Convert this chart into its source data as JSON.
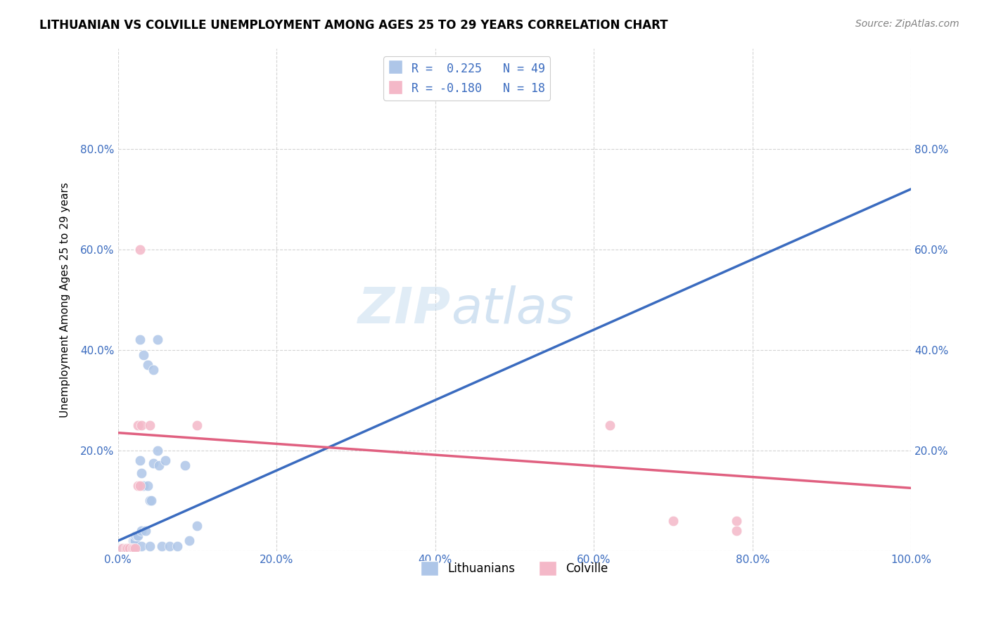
{
  "title": "LITHUANIAN VS COLVILLE UNEMPLOYMENT AMONG AGES 25 TO 29 YEARS CORRELATION CHART",
  "source": "Source: ZipAtlas.com",
  "ylabel": "Unemployment Among Ages 25 to 29 years",
  "xlim": [
    0,
    1.0
  ],
  "ylim": [
    0,
    1.0
  ],
  "xticks": [
    0.0,
    0.2,
    0.4,
    0.6,
    0.8,
    1.0
  ],
  "yticks": [
    0.0,
    0.2,
    0.4,
    0.6,
    0.8
  ],
  "xticklabels": [
    "0.0%",
    "20.0%",
    "40.0%",
    "60.0%",
    "80.0%",
    "100.0%"
  ],
  "yticklabels": [
    "",
    "20.0%",
    "40.0%",
    "60.0%",
    "80.0%"
  ],
  "blue_color": "#aec6e8",
  "pink_color": "#f4b8c8",
  "blue_line_color": "#3a6bbf",
  "pink_line_color": "#e06080",
  "blue_dash_color": "#c0d4ee",
  "watermark_zip": "ZIP",
  "watermark_atlas": "atlas",
  "blue_points": [
    [
      0.002,
      0.005
    ],
    [
      0.003,
      0.005
    ],
    [
      0.004,
      0.005
    ],
    [
      0.005,
      0.005
    ],
    [
      0.006,
      0.005
    ],
    [
      0.007,
      0.005
    ],
    [
      0.008,
      0.005
    ],
    [
      0.009,
      0.005
    ],
    [
      0.01,
      0.005
    ],
    [
      0.011,
      0.005
    ],
    [
      0.012,
      0.005
    ],
    [
      0.013,
      0.005
    ],
    [
      0.014,
      0.005
    ],
    [
      0.015,
      0.005
    ],
    [
      0.016,
      0.005
    ],
    [
      0.017,
      0.005
    ],
    [
      0.018,
      0.005
    ],
    [
      0.019,
      0.02
    ],
    [
      0.02,
      0.02
    ],
    [
      0.021,
      0.02
    ],
    [
      0.022,
      0.02
    ],
    [
      0.023,
      0.03
    ],
    [
      0.024,
      0.03
    ],
    [
      0.025,
      0.03
    ],
    [
      0.03,
      0.04
    ],
    [
      0.035,
      0.04
    ],
    [
      0.028,
      0.18
    ],
    [
      0.03,
      0.155
    ],
    [
      0.032,
      0.13
    ],
    [
      0.038,
      0.13
    ],
    [
      0.04,
      0.1
    ],
    [
      0.042,
      0.1
    ],
    [
      0.045,
      0.175
    ],
    [
      0.05,
      0.2
    ],
    [
      0.052,
      0.17
    ],
    [
      0.06,
      0.18
    ],
    [
      0.028,
      0.42
    ],
    [
      0.032,
      0.39
    ],
    [
      0.038,
      0.37
    ],
    [
      0.045,
      0.36
    ],
    [
      0.05,
      0.42
    ],
    [
      0.03,
      0.01
    ],
    [
      0.04,
      0.01
    ],
    [
      0.055,
      0.01
    ],
    [
      0.065,
      0.01
    ],
    [
      0.075,
      0.01
    ],
    [
      0.085,
      0.17
    ],
    [
      0.09,
      0.02
    ],
    [
      0.1,
      0.05
    ]
  ],
  "pink_points": [
    [
      0.006,
      0.005
    ],
    [
      0.01,
      0.005
    ],
    [
      0.012,
      0.005
    ],
    [
      0.015,
      0.005
    ],
    [
      0.018,
      0.005
    ],
    [
      0.02,
      0.005
    ],
    [
      0.022,
      0.005
    ],
    [
      0.025,
      0.13
    ],
    [
      0.028,
      0.13
    ],
    [
      0.025,
      0.25
    ],
    [
      0.03,
      0.25
    ],
    [
      0.028,
      0.6
    ],
    [
      0.04,
      0.25
    ],
    [
      0.1,
      0.25
    ],
    [
      0.62,
      0.25
    ],
    [
      0.7,
      0.06
    ],
    [
      0.78,
      0.06
    ],
    [
      0.78,
      0.04
    ]
  ],
  "blue_line": {
    "x0": 0.0,
    "y0": 0.02,
    "x1": 1.0,
    "y1": 0.72
  },
  "pink_line": {
    "x0": 0.0,
    "y0": 0.235,
    "x1": 1.0,
    "y1": 0.125
  },
  "background_color": "#ffffff",
  "grid_color": "#d0d0d0",
  "tick_color": "#3a6bbf",
  "legend_r1": "R =  0.225   N = 49",
  "legend_r2": "R = -0.180   N = 18",
  "legend_label1": "Lithuanians",
  "legend_label2": "Colville"
}
